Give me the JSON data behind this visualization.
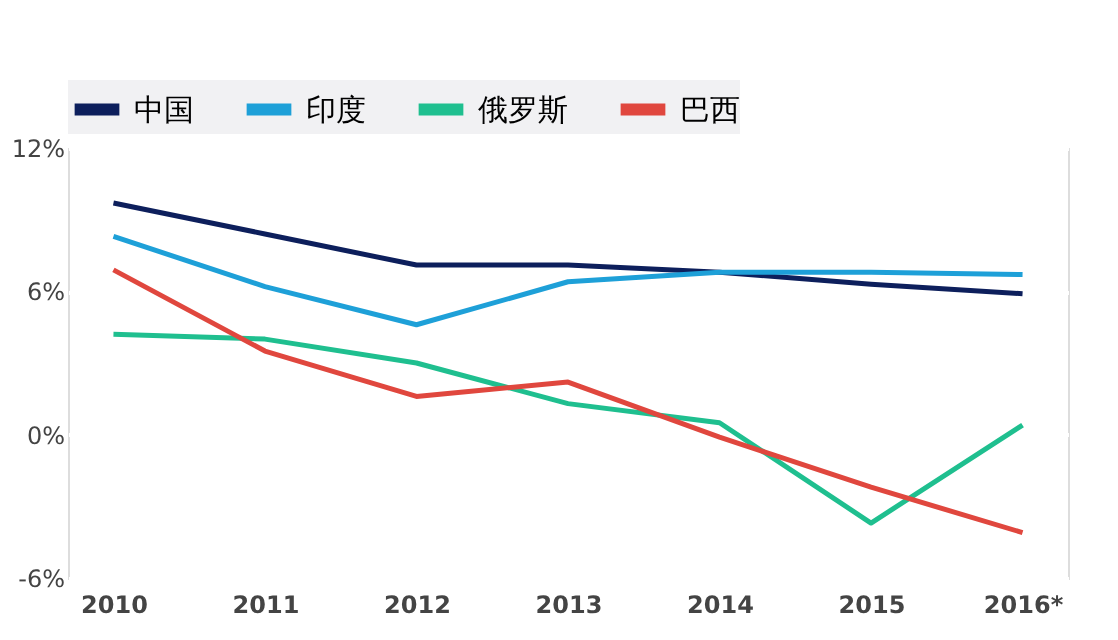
{
  "chart_data": {
    "type": "line",
    "categories": [
      "2010",
      "2011",
      "2012",
      "2013",
      "2014",
      "2015",
      "2016*"
    ],
    "series": [
      {
        "name": "中国",
        "color": "#0d1f5c",
        "values": [
          9.7,
          8.4,
          7.1,
          7.1,
          6.8,
          6.3,
          5.9
        ]
      },
      {
        "name": "印度",
        "color": "#1ea0d8",
        "values": [
          8.3,
          6.2,
          4.6,
          6.4,
          6.8,
          6.8,
          6.7
        ]
      },
      {
        "name": "俄罗斯",
        "color": "#1fbf8f",
        "values": [
          4.2,
          4.0,
          3.0,
          1.3,
          0.5,
          -3.7,
          0.4
        ]
      },
      {
        "name": "巴西",
        "color": "#e0473e",
        "values": [
          6.9,
          3.5,
          1.6,
          2.2,
          -0.1,
          -2.2,
          -4.1
        ]
      }
    ],
    "ylim": [
      -6,
      12
    ],
    "yticks": [
      {
        "value": -6,
        "label": "-6%"
      },
      {
        "value": 0,
        "label": "0%"
      },
      {
        "value": 6,
        "label": "6%"
      },
      {
        "value": 12,
        "label": "12%"
      }
    ],
    "grid": "y",
    "legend": "top left",
    "marker": "none",
    "line_style": "solid"
  }
}
